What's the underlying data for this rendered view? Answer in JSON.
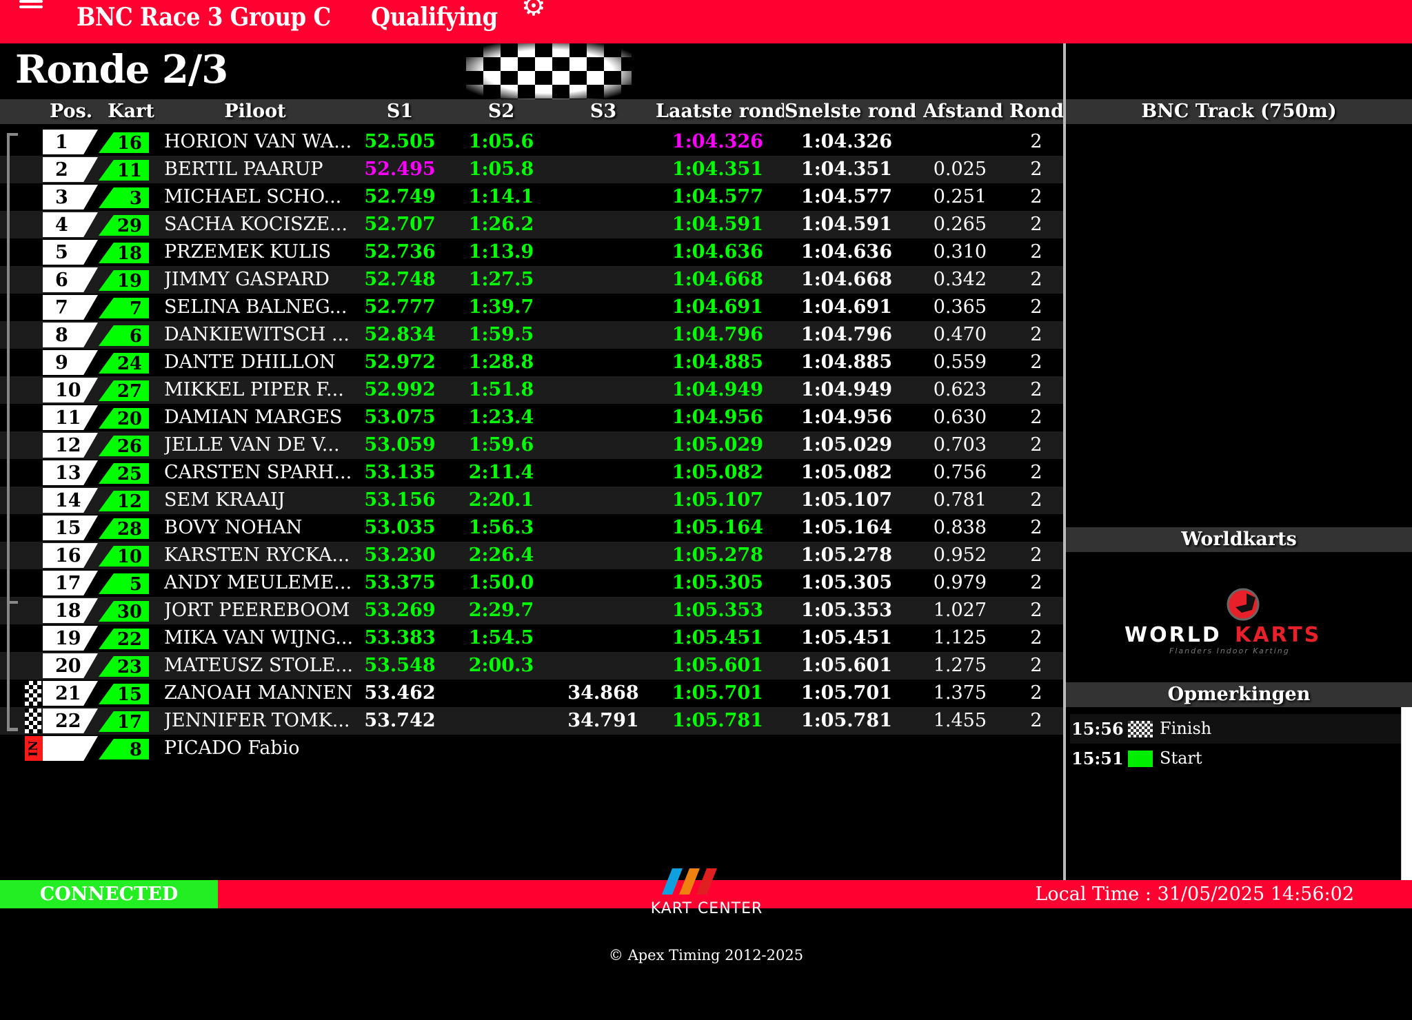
{
  "header": {
    "event": "BNC Race 3 Group C",
    "session": "Qualifying",
    "menu_icon": "hamburger-icon",
    "settings_icon": "gear-icon"
  },
  "lap_info": "Ronde 2/3",
  "colors": {
    "topbar": "#ff0030",
    "sector_green": "#00ff00",
    "best_magenta": "#ff00ff",
    "connected": "#22ee22"
  },
  "columns": {
    "pos": "Pos.",
    "kart": "Kart",
    "pilot": "Piloot",
    "s1": "S1",
    "s2": "S2",
    "s3": "S3",
    "last": "Laatste ronde",
    "best": "Snelste ronde",
    "gap": "Afstand",
    "laps": "Ronde"
  },
  "rows": [
    {
      "pos": "1",
      "kart": "16",
      "pilot": "HORION VAN WA...",
      "s1": "52.505",
      "s1c": "green",
      "s2": "1:05.6",
      "s3": "",
      "last": "1:04.326",
      "lastc": "mag",
      "best": "1:04.326",
      "gap": "",
      "laps": "2"
    },
    {
      "pos": "2",
      "kart": "11",
      "pilot": "BERTIL PAARUP",
      "s1": "52.495",
      "s1c": "mag",
      "s2": "1:05.8",
      "s3": "",
      "last": "1:04.351",
      "lastc": "green",
      "best": "1:04.351",
      "gap": "0.025",
      "laps": "2"
    },
    {
      "pos": "3",
      "kart": "3",
      "pilot": "MICHAEL SCHO...",
      "s1": "52.749",
      "s1c": "green",
      "s2": "1:14.1",
      "s3": "",
      "last": "1:04.577",
      "lastc": "green",
      "best": "1:04.577",
      "gap": "0.251",
      "laps": "2"
    },
    {
      "pos": "4",
      "kart": "29",
      "pilot": "SACHA KOCISZE...",
      "s1": "52.707",
      "s1c": "green",
      "s2": "1:26.2",
      "s3": "",
      "last": "1:04.591",
      "lastc": "green",
      "best": "1:04.591",
      "gap": "0.265",
      "laps": "2"
    },
    {
      "pos": "5",
      "kart": "18",
      "pilot": "PRZEMEK KULIS",
      "s1": "52.736",
      "s1c": "green",
      "s2": "1:13.9",
      "s3": "",
      "last": "1:04.636",
      "lastc": "green",
      "best": "1:04.636",
      "gap": "0.310",
      "laps": "2"
    },
    {
      "pos": "6",
      "kart": "19",
      "pilot": "JIMMY GASPARD",
      "s1": "52.748",
      "s1c": "green",
      "s2": "1:27.5",
      "s3": "",
      "last": "1:04.668",
      "lastc": "green",
      "best": "1:04.668",
      "gap": "0.342",
      "laps": "2"
    },
    {
      "pos": "7",
      "kart": "7",
      "pilot": "SELINA BALNEG...",
      "s1": "52.777",
      "s1c": "green",
      "s2": "1:39.7",
      "s3": "",
      "last": "1:04.691",
      "lastc": "green",
      "best": "1:04.691",
      "gap": "0.365",
      "laps": "2"
    },
    {
      "pos": "8",
      "kart": "6",
      "pilot": "DANKIEWITSCH ...",
      "s1": "52.834",
      "s1c": "green",
      "s2": "1:59.5",
      "s3": "",
      "last": "1:04.796",
      "lastc": "green",
      "best": "1:04.796",
      "gap": "0.470",
      "laps": "2"
    },
    {
      "pos": "9",
      "kart": "24",
      "pilot": "DANTE DHILLON",
      "s1": "52.972",
      "s1c": "green",
      "s2": "1:28.8",
      "s3": "",
      "last": "1:04.885",
      "lastc": "green",
      "best": "1:04.885",
      "gap": "0.559",
      "laps": "2"
    },
    {
      "pos": "10",
      "kart": "27",
      "pilot": "MIKKEL PIPER F...",
      "s1": "52.992",
      "s1c": "green",
      "s2": "1:51.8",
      "s3": "",
      "last": "1:04.949",
      "lastc": "green",
      "best": "1:04.949",
      "gap": "0.623",
      "laps": "2"
    },
    {
      "pos": "11",
      "kart": "20",
      "pilot": "DAMIAN MARGES",
      "s1": "53.075",
      "s1c": "green",
      "s2": "1:23.4",
      "s3": "",
      "last": "1:04.956",
      "lastc": "green",
      "best": "1:04.956",
      "gap": "0.630",
      "laps": "2"
    },
    {
      "pos": "12",
      "kart": "26",
      "pilot": "JELLE VAN DE V...",
      "s1": "53.059",
      "s1c": "green",
      "s2": "1:59.6",
      "s3": "",
      "last": "1:05.029",
      "lastc": "green",
      "best": "1:05.029",
      "gap": "0.703",
      "laps": "2"
    },
    {
      "pos": "13",
      "kart": "25",
      "pilot": "CARSTEN SPARH...",
      "s1": "53.135",
      "s1c": "green",
      "s2": "2:11.4",
      "s3": "",
      "last": "1:05.082",
      "lastc": "green",
      "best": "1:05.082",
      "gap": "0.756",
      "laps": "2"
    },
    {
      "pos": "14",
      "kart": "12",
      "pilot": "SEM KRAAIJ",
      "s1": "53.156",
      "s1c": "green",
      "s2": "2:20.1",
      "s3": "",
      "last": "1:05.107",
      "lastc": "green",
      "best": "1:05.107",
      "gap": "0.781",
      "laps": "2"
    },
    {
      "pos": "15",
      "kart": "28",
      "pilot": "BOVY NOHAN",
      "s1": "53.035",
      "s1c": "green",
      "s2": "1:56.3",
      "s3": "",
      "last": "1:05.164",
      "lastc": "green",
      "best": "1:05.164",
      "gap": "0.838",
      "laps": "2"
    },
    {
      "pos": "16",
      "kart": "10",
      "pilot": "KARSTEN RYCKA...",
      "s1": "53.230",
      "s1c": "green",
      "s2": "2:26.4",
      "s3": "",
      "last": "1:05.278",
      "lastc": "green",
      "best": "1:05.278",
      "gap": "0.952",
      "laps": "2"
    },
    {
      "pos": "17",
      "kart": "5",
      "pilot": "ANDY MEULEME...",
      "s1": "53.375",
      "s1c": "green",
      "s2": "1:50.0",
      "s3": "",
      "last": "1:05.305",
      "lastc": "green",
      "best": "1:05.305",
      "gap": "0.979",
      "laps": "2"
    },
    {
      "pos": "18",
      "kart": "30",
      "pilot": "JORT PEEREBOOM",
      "s1": "53.269",
      "s1c": "green",
      "s2": "2:29.7",
      "s3": "",
      "last": "1:05.353",
      "lastc": "green",
      "best": "1:05.353",
      "gap": "1.027",
      "laps": "2"
    },
    {
      "pos": "19",
      "kart": "22",
      "pilot": "MIKA VAN WIJNG...",
      "s1": "53.383",
      "s1c": "green",
      "s2": "1:54.5",
      "s3": "",
      "last": "1:05.451",
      "lastc": "green",
      "best": "1:05.451",
      "gap": "1.125",
      "laps": "2"
    },
    {
      "pos": "20",
      "kart": "23",
      "pilot": "MATEUSZ STOLE...",
      "s1": "53.548",
      "s1c": "green",
      "s2": "2:00.3",
      "s3": "",
      "last": "1:05.601",
      "lastc": "green",
      "best": "1:05.601",
      "gap": "1.275",
      "laps": "2"
    },
    {
      "pos": "21",
      "kart": "15",
      "pilot": "ZANOAH MANNEN",
      "s1": "53.462",
      "s1c": "white",
      "s2": "",
      "s3": "34.868",
      "last": "1:05.701",
      "lastc": "green",
      "best": "1:05.701",
      "gap": "1.375",
      "laps": "2",
      "status": "checkered-flag-icon"
    },
    {
      "pos": "22",
      "kart": "17",
      "pilot": "JENNIFER TOMK...",
      "s1": "53.742",
      "s1c": "white",
      "s2": "",
      "s3": "34.791",
      "last": "1:05.781",
      "lastc": "green",
      "best": "1:05.781",
      "gap": "1.455",
      "laps": "2",
      "status": "checkered-flag-icon"
    },
    {
      "pos": "",
      "kart": "8",
      "pilot": "PICADO Fabio",
      "s1": "",
      "s1c": "white",
      "s2": "",
      "s3": "",
      "last": "",
      "lastc": "green",
      "best": "",
      "gap": "",
      "laps": "",
      "status": "IN"
    }
  ],
  "right": {
    "track": "BNC Track (750m)",
    "sponsor": "Worldkarts",
    "sponsor_logo": "WORLDKARTS Flanders Indoor Karting",
    "remarks": "Opmerkingen",
    "messages": [
      {
        "time": "15:56",
        "icon": "checkered-flag-icon",
        "text": "Finish"
      },
      {
        "time": "15:51",
        "icon": "green-flag-icon",
        "text": "Start"
      }
    ]
  },
  "footer": {
    "status": "CONNECTED",
    "local_time": "Local Time : 31/05/2025 14:56:02",
    "logo": "KART CENTER",
    "copyright": "© Apex Timing 2012-2025"
  }
}
